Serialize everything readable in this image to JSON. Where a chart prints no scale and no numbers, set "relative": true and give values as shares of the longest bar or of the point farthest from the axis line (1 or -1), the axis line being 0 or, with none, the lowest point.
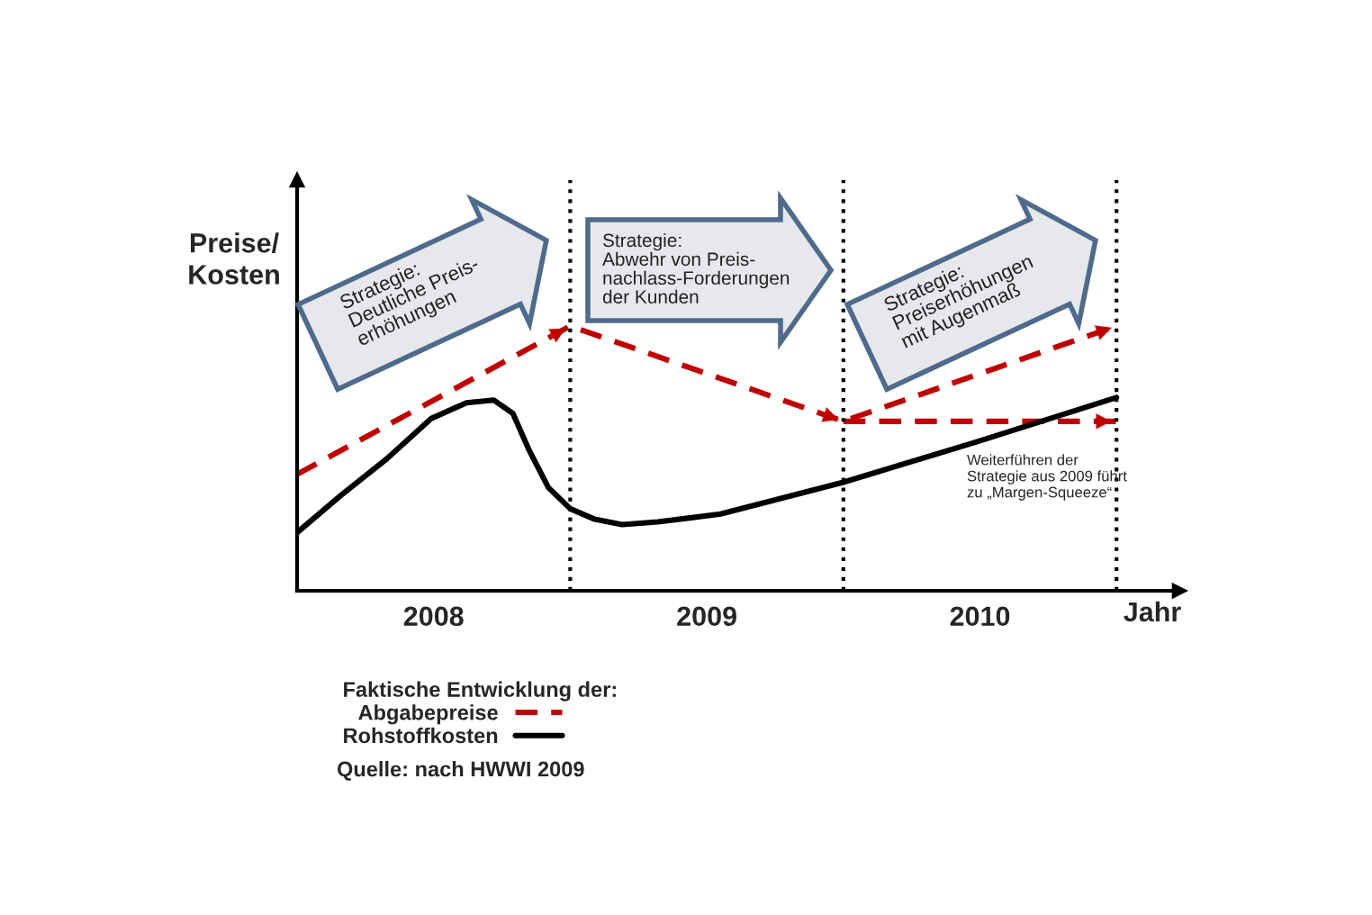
{
  "chart_data": {
    "type": "line",
    "relative": true,
    "ylabel": "Preise/\nKosten",
    "xlabel": "Jahr",
    "legend_title": "Faktische Entwicklung der:",
    "legend": "bottom",
    "grid": false,
    "xlim": [
      2008,
      2011.23
    ],
    "xticks": [
      {
        "value": 2008.5,
        "label": "2008"
      },
      {
        "value": 2009.5,
        "label": "2009"
      },
      {
        "value": 2010.5,
        "label": "2010"
      }
    ],
    "series": [
      {
        "name": "Abgabepreise",
        "color": "#c00000",
        "line_style": "dashed",
        "x": [
          2008,
          2009,
          2010,
          2011
        ],
        "values": [
          0.44,
          1.0,
          0.64,
          1.0
        ]
      },
      {
        "color": "#c00000",
        "line_style": "dashed",
        "x": [
          2010,
          2011
        ],
        "values": [
          0.64,
          0.64
        ]
      },
      {
        "name": "Rohstoffkosten",
        "color": "#000000",
        "line_style": "solid",
        "x": [
          2008,
          2008.16,
          2008.33,
          2008.49,
          2008.62,
          2008.72,
          2008.79,
          2008.85,
          2008.92,
          2009,
          2009.09,
          2009.19,
          2009.32,
          2009.55,
          2010,
          2010.48,
          2011
        ],
        "values": [
          0.22,
          0.36,
          0.5,
          0.65,
          0.71,
          0.72,
          0.67,
          0.53,
          0.39,
          0.31,
          0.27,
          0.25,
          0.26,
          0.29,
          0.41,
          0.56,
          0.73
        ]
      }
    ],
    "ref_lines": [
      {
        "axis": "x",
        "value": 2009,
        "color": "#000000",
        "line_style": "dotted"
      },
      {
        "axis": "x",
        "value": 2010,
        "color": "#000000",
        "line_style": "dotted"
      },
      {
        "axis": "x",
        "value": 2011,
        "color": "#000000",
        "line_style": "dotted"
      }
    ],
    "annotations": [
      "Strategie:\nDeutliche Preis-\nerhöhungen",
      "Strategie:\nAbwehr von Preis-\nnachlass-Forderungen\nder Kunden",
      "Strategie:\nPreiserhöhungen\nmit Augenmaß",
      "Weiterführen der\nStrategie aus 2009 führt\nzu „Margen-Squeeze“",
      "Quelle: nach HWWI 2009"
    ]
  }
}
